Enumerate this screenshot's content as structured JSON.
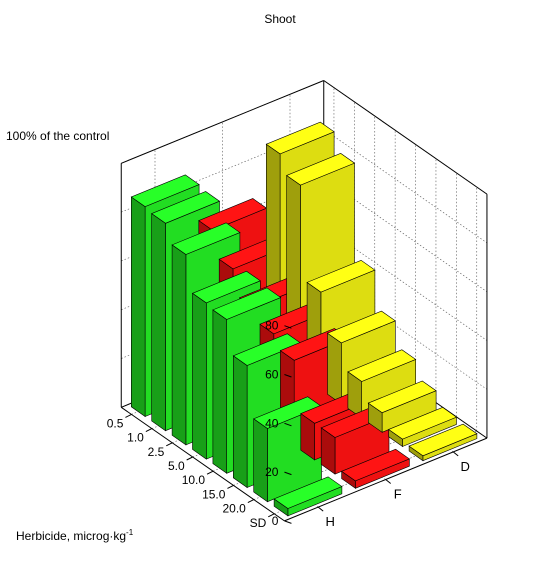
{
  "chart_data": {
    "type": "bar3d",
    "title": "Shoot",
    "zlabel": "100% of the control",
    "xlabel_main": "Herbicide, microg·kg",
    "xlabel_exp": "-1",
    "zlim": [
      0,
      100
    ],
    "z_ticks": [
      "0",
      "20",
      "40",
      "60",
      "80"
    ],
    "doses": [
      "SD",
      "20.0",
      "15.0",
      "10.0",
      "5.0",
      "2.5",
      "1.0",
      "0.5"
    ],
    "herbicides": [
      "H",
      "F",
      "D"
    ],
    "grid": true,
    "series": [
      {
        "name": "H",
        "color": "#22dd22",
        "values": [
          3,
          30,
          50,
          63,
          64,
          78,
          85,
          86
        ]
      },
      {
        "name": "F",
        "color": "#ee1111",
        "values": [
          3,
          15,
          15,
          35,
          40,
          45,
          55,
          65
        ]
      },
      {
        "name": "D",
        "color": "#dddd11",
        "values": [
          2,
          3,
          8,
          15,
          25,
          40,
          78,
          85
        ]
      }
    ]
  }
}
